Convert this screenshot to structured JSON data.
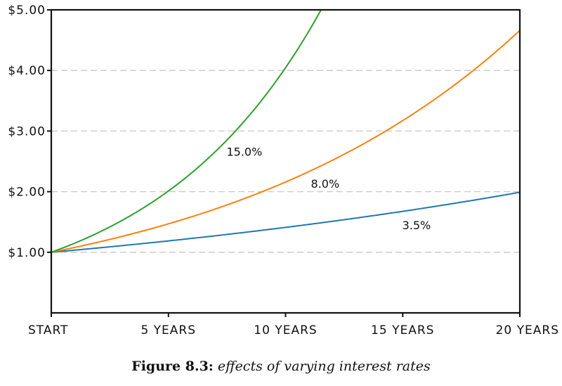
{
  "caption": {
    "number": "Figure 8.3:",
    "text": "effects of varying interest rates"
  },
  "chart_data": {
    "type": "line",
    "title": "",
    "xlabel": "",
    "ylabel": "",
    "x": [
      0,
      5,
      10,
      15,
      20
    ],
    "x_tick_labels": [
      "START",
      "5 YEARS",
      "10 YEARS",
      "15 YEARS",
      "20 YEARS"
    ],
    "y_tick_values": [
      1,
      2,
      3,
      4,
      5
    ],
    "y_tick_labels": [
      "$1.00",
      "$2.00",
      "$3.00",
      "$4.00",
      "$5.00"
    ],
    "xlim": [
      0,
      20
    ],
    "ylim": [
      0,
      5
    ],
    "grid": "horizontal-dashed",
    "series": [
      {
        "name": "3.5%",
        "rate": 0.035,
        "color": "#1f77b4",
        "label_at_x": 15.1
      },
      {
        "name": "8.0%",
        "rate": 0.08,
        "color": "#ff7f0e",
        "label_at_x": 11.2
      },
      {
        "name": "15.0%",
        "rate": 0.15,
        "color": "#2ca02c",
        "label_at_x": 7.6
      }
    ]
  }
}
